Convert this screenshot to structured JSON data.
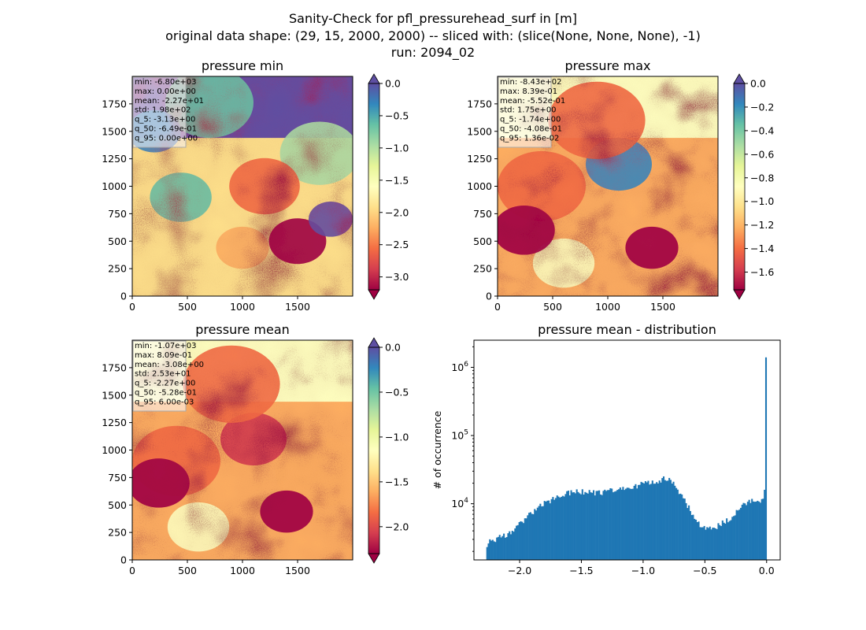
{
  "figure": {
    "title_lines": [
      "Sanity-Check for pfl_pressurehead_surf in [m]",
      "original data shape: (29, 15, 2000, 2000) -- sliced with: (slice(None, None, None), -1)",
      "run: 2094_02"
    ]
  },
  "colors": {
    "spectral": [
      "#9e0142",
      "#d53e4f",
      "#f46d43",
      "#fdae61",
      "#fee08b",
      "#ffffbf",
      "#e6f598",
      "#abdda4",
      "#66c2a5",
      "#3288bd",
      "#5e4fa2"
    ],
    "hist_bar": "#1f77b4"
  },
  "chart_data": [
    {
      "type": "heatmap",
      "title": "pressure min",
      "x_ticks": [
        0,
        500,
        1000,
        1500
      ],
      "y_ticks": [
        0,
        250,
        500,
        750,
        1000,
        1250,
        1500,
        1750
      ],
      "xlim": [
        0,
        2000
      ],
      "ylim": [
        0,
        2000
      ],
      "colormap": "Spectral",
      "color_range": [
        -3.2,
        0.0
      ],
      "colorbar_ticks": [
        0.0,
        -0.5,
        -1.0,
        -1.5,
        -2.0,
        -2.5,
        -3.0
      ],
      "colorbar_tick_labels": [
        "0.0",
        "−0.5",
        "−1.0",
        "−1.5",
        "−2.0",
        "−2.5",
        "−3.0"
      ],
      "colorbar_extend": "both",
      "stats": [
        "min: -6.80e+03",
        "max: 0.00e+00",
        "mean: -2.27e+01",
        "std: 1.98e+02",
        "q_5: -3.13e+00",
        "q_50: -6.49e-01",
        "q_95: 0.00e+00"
      ]
    },
    {
      "type": "heatmap",
      "title": "pressure max",
      "x_ticks": [
        0,
        500,
        1000,
        1500
      ],
      "y_ticks": [
        0,
        250,
        500,
        750,
        1000,
        1250,
        1500,
        1750
      ],
      "xlim": [
        0,
        2000
      ],
      "ylim": [
        0,
        2000
      ],
      "colormap": "Spectral",
      "color_range": [
        -1.75,
        0.0
      ],
      "colorbar_ticks": [
        0.0,
        -0.2,
        -0.4,
        -0.6,
        -0.8,
        -1.0,
        -1.2,
        -1.4,
        -1.6
      ],
      "colorbar_tick_labels": [
        "0.0",
        "−0.2",
        "−0.4",
        "−0.6",
        "−0.8",
        "−1.0",
        "−1.2",
        "−1.4",
        "−1.6"
      ],
      "colorbar_extend": "both",
      "stats": [
        "min: -8.43e+02",
        "max: 8.39e-01",
        "mean: -5.52e-01",
        "std: 1.75e+00",
        "q_5: -1.74e+00",
        "q_50: -4.08e-01",
        "q_95: 1.36e-02"
      ]
    },
    {
      "type": "heatmap",
      "title": "pressure mean",
      "x_ticks": [
        0,
        500,
        1000,
        1500
      ],
      "y_ticks": [
        0,
        250,
        500,
        750,
        1000,
        1250,
        1500,
        1750
      ],
      "xlim": [
        0,
        2000
      ],
      "ylim": [
        0,
        2000
      ],
      "colormap": "Spectral",
      "color_range": [
        -2.3,
        0.0
      ],
      "colorbar_ticks": [
        0.0,
        -0.5,
        -1.0,
        -1.5,
        -2.0
      ],
      "colorbar_tick_labels": [
        "0.0",
        "−0.5",
        "−1.0",
        "−1.5",
        "−2.0"
      ],
      "colorbar_extend": "both",
      "stats": [
        "min: -1.07e+03",
        "max: 8.09e-01",
        "mean: -3.08e+00",
        "std: 2.53e+01",
        "q_5: -2.27e+00",
        "q_50: -5.28e-01",
        "q_95: 6.00e-03"
      ]
    },
    {
      "type": "bar",
      "title": "pressure mean - distribution",
      "xlabel": "",
      "ylabel": "# of occurrence",
      "y_scale": "log",
      "xlim": [
        -2.37,
        0.11
      ],
      "ylim": [
        1500,
        2500000
      ],
      "x_ticks": [
        -2.0,
        -1.5,
        -1.0,
        -0.5,
        0.0
      ],
      "x_tick_labels": [
        "−2.0",
        "−1.5",
        "−1.0",
        "−0.5",
        "0.0"
      ],
      "y_ticks": [
        10000,
        100000,
        1000000
      ],
      "y_tick_labels": [
        "10^4",
        "10^5",
        "10^6"
      ],
      "bin_range": [
        -2.27,
        0.0
      ],
      "bin_count": 200,
      "profile_points": [
        [
          -2.27,
          2300
        ],
        [
          -2.26,
          2800
        ],
        [
          -2.2,
          3000
        ],
        [
          -2.1,
          3600
        ],
        [
          -2.0,
          5000
        ],
        [
          -1.9,
          7500
        ],
        [
          -1.8,
          10000
        ],
        [
          -1.7,
          12500
        ],
        [
          -1.6,
          14500
        ],
        [
          -1.5,
          15000
        ],
        [
          -1.4,
          14500
        ],
        [
          -1.3,
          15000
        ],
        [
          -1.2,
          16000
        ],
        [
          -1.1,
          17500
        ],
        [
          -1.0,
          19500
        ],
        [
          -0.9,
          21500
        ],
        [
          -0.82,
          23500
        ],
        [
          -0.76,
          21000
        ],
        [
          -0.7,
          14000
        ],
        [
          -0.6,
          7000
        ],
        [
          -0.55,
          5000
        ],
        [
          -0.47,
          4300
        ],
        [
          -0.4,
          4700
        ],
        [
          -0.3,
          6000
        ],
        [
          -0.22,
          8500
        ],
        [
          -0.17,
          10000
        ],
        [
          -0.12,
          11000
        ],
        [
          -0.06,
          10200
        ],
        [
          -0.03,
          11000
        ],
        [
          -0.01,
          20000
        ],
        [
          0.0,
          1400000
        ]
      ]
    }
  ]
}
